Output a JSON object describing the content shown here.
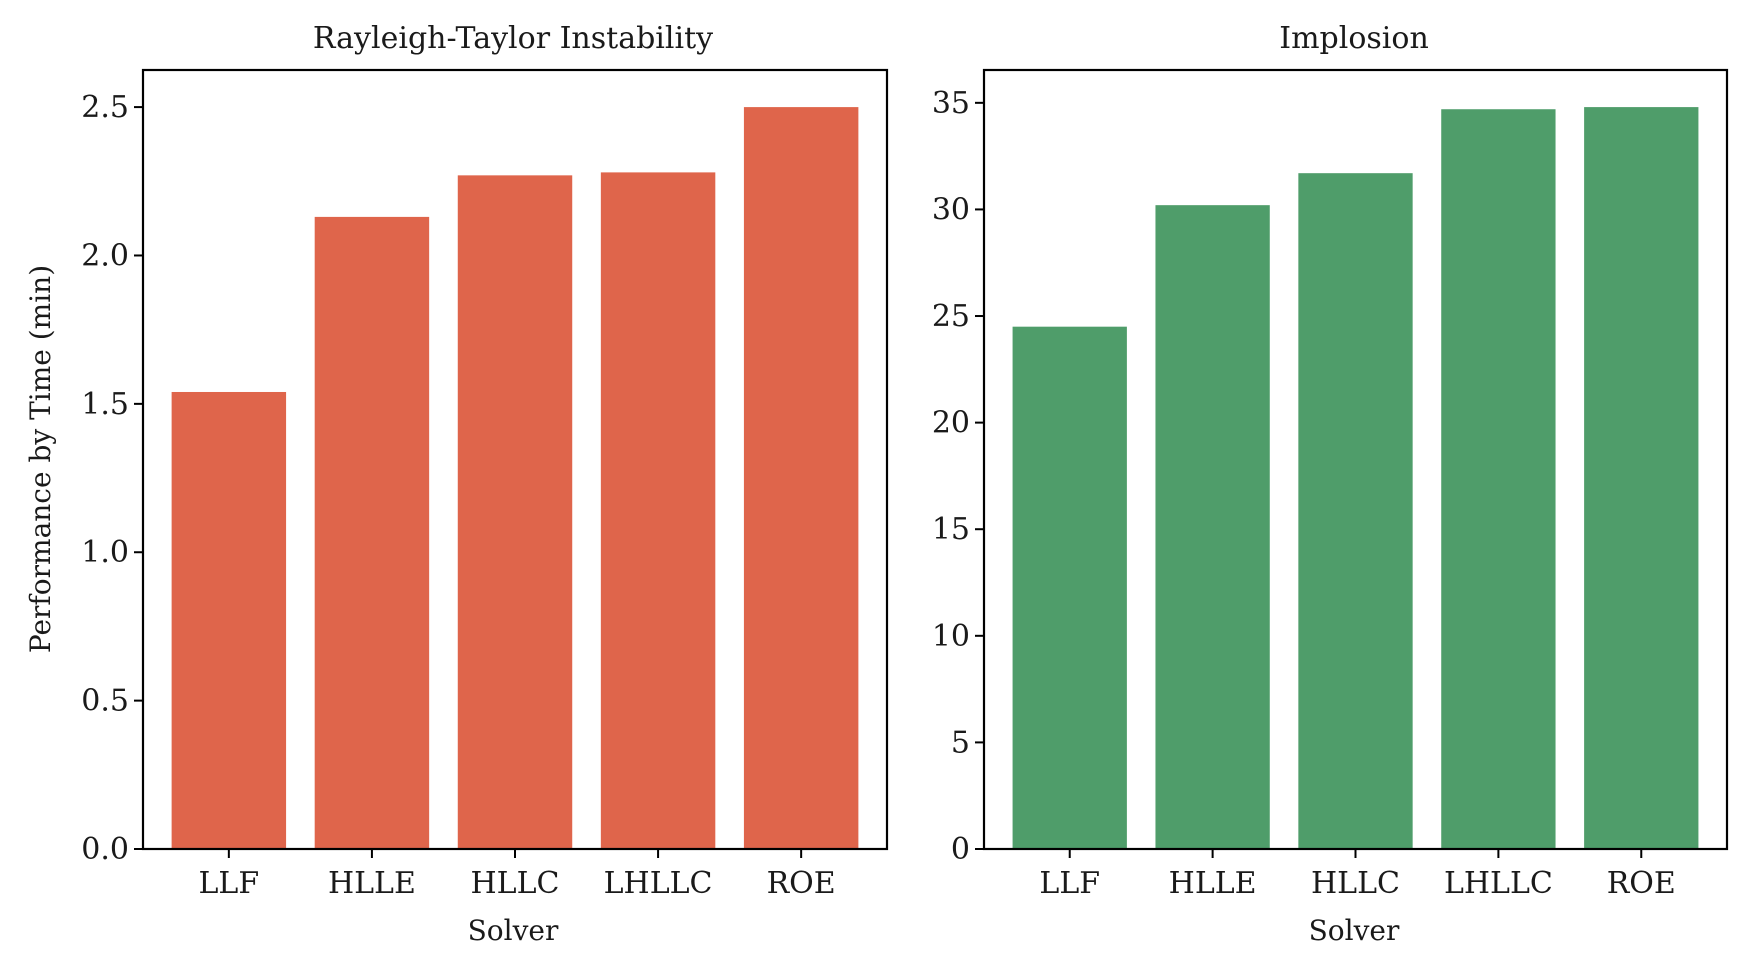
{
  "chart_data": [
    {
      "type": "bar",
      "title": "Rayleigh-Taylor Instability",
      "xlabel": "Solver",
      "ylabel": "Performance by Time (min)",
      "categories": [
        "LLF",
        "HLLE",
        "HLLC",
        "LHLLC",
        "ROE"
      ],
      "values": [
        1.54,
        2.13,
        2.27,
        2.28,
        2.5
      ],
      "ylim": [
        0,
        2.625
      ],
      "yticks": [
        0.0,
        0.5,
        1.0,
        1.5,
        2.0,
        2.5
      ],
      "ytick_labels": [
        "0.0",
        "0.5",
        "1.0",
        "1.5",
        "2.0",
        "2.5"
      ],
      "color": "#DF654B",
      "grid": false
    },
    {
      "type": "bar",
      "title": "Implosion",
      "xlabel": "Solver",
      "ylabel": "",
      "categories": [
        "LLF",
        "HLLE",
        "HLLC",
        "LHLLC",
        "ROE"
      ],
      "values": [
        24.5,
        30.2,
        31.7,
        34.7,
        34.8
      ],
      "ylim": [
        0,
        36.54
      ],
      "yticks": [
        0,
        5,
        10,
        15,
        20,
        25,
        30,
        35
      ],
      "ytick_labels": [
        "0",
        "5",
        "10",
        "15",
        "20",
        "25",
        "30",
        "35"
      ],
      "color": "#4F9D6A",
      "grid": false
    }
  ]
}
